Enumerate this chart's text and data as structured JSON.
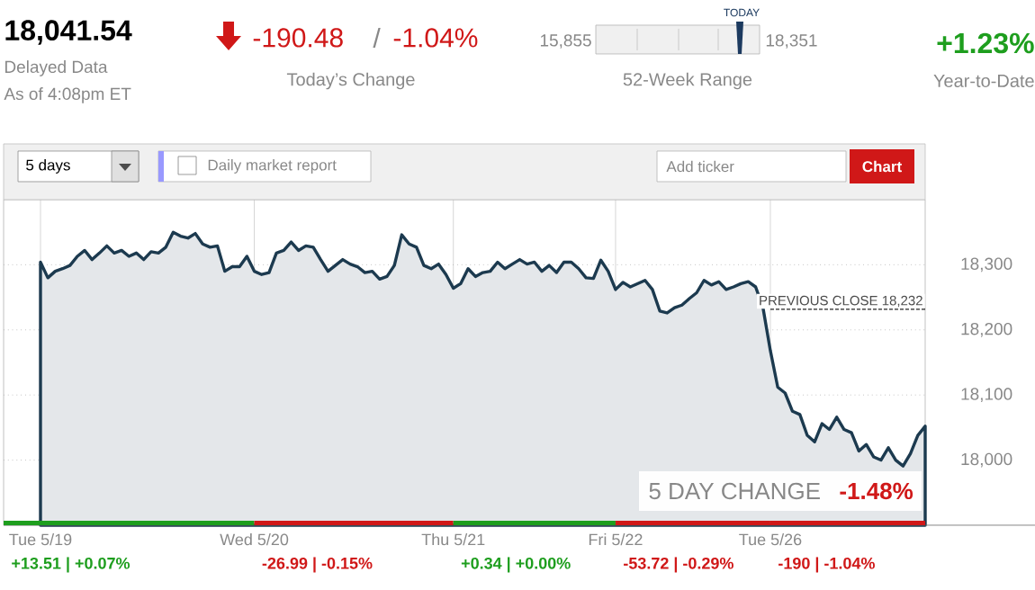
{
  "chart_data": {
    "type": "area",
    "title": "18,041.54",
    "subtitle": "Delayed Data",
    "annotations": [
      "As of 4:08pm ET",
      "-190.48",
      "/",
      "-1.04%",
      "Today’s Change",
      "TODAY",
      "15,855",
      "18,351",
      "52-Week Range",
      "+1.23%",
      "Year-to-Date",
      "5 days",
      "Daily market report",
      "Add ticker",
      "Chart",
      "5 DAY CHANGE",
      "-1.48%",
      "+13.51 | +0.07%",
      "-26.99 | -0.15%",
      "+0.34 | +0.00%",
      "-53.72 | -0.29%",
      "-190 | -1.04%"
    ],
    "categories": [
      "Tue 5/19",
      null,
      null,
      null,
      null,
      null,
      null,
      null,
      null,
      null,
      null,
      null,
      null,
      null,
      null,
      null,
      null,
      null,
      null,
      null,
      null,
      null,
      null,
      null,
      null,
      null,
      null,
      null,
      null,
      "Wed 5/20",
      null,
      null,
      null,
      null,
      null,
      null,
      null,
      null,
      null,
      null,
      null,
      null,
      null,
      null,
      null,
      null,
      null,
      null,
      null,
      null,
      null,
      null,
      null,
      null,
      null,
      null,
      "Thu 5/21",
      null,
      null,
      null,
      null,
      null,
      null,
      null,
      null,
      null,
      null,
      null,
      null,
      null,
      null,
      null,
      null,
      null,
      null,
      null,
      null,
      null,
      "Fri 5/22",
      null,
      null,
      null,
      null,
      null,
      null,
      null,
      null,
      null,
      null,
      null,
      null,
      null,
      null,
      null,
      null,
      null,
      null,
      null,
      null,
      "Tue 5/26",
      null,
      null,
      null,
      null,
      null,
      null,
      null,
      null,
      null,
      null,
      null,
      null,
      null,
      null,
      null,
      null,
      null,
      null,
      null,
      null,
      null
    ],
    "series": [
      {
        "color": "#1c3a4f",
        "values": [
          18304,
          18280,
          18290,
          18294,
          18299,
          18313,
          18322,
          18308,
          18318,
          18329,
          18318,
          18322,
          18313,
          18318,
          18308,
          18320,
          18318,
          18327,
          18350,
          18344,
          18341,
          18348,
          18332,
          18327,
          18329,
          18290,
          18297,
          18297,
          18313,
          18290,
          18285,
          18288,
          18318,
          18322,
          18335,
          18322,
          18329,
          18327,
          18308,
          18290,
          18299,
          18308,
          18301,
          18297,
          18288,
          18290,
          18278,
          18282,
          18299,
          18346,
          18332,
          18327,
          18299,
          18294,
          18301,
          18285,
          18264,
          18271,
          18294,
          18282,
          18288,
          18290,
          18304,
          18294,
          18301,
          18308,
          18301,
          18304,
          18290,
          18299,
          18288,
          18304,
          18304,
          18294,
          18280,
          18279,
          18307,
          18290,
          18262,
          18273,
          18266,
          18271,
          18276,
          18262,
          18229,
          18226,
          18234,
          18238,
          18248,
          18257,
          18276,
          18269,
          18274,
          18262,
          18266,
          18271,
          18274,
          18266,
          18234,
          18168,
          18112,
          18103,
          18075,
          18070,
          18038,
          18028,
          18056,
          18047,
          18066,
          18047,
          18042,
          18014,
          18024,
          18005,
          18000,
          18019,
          18000,
          17991,
          18010,
          18038,
          18052
        ]
      }
    ],
    "ylim": [
      17900,
      18400
    ],
    "yticks": [
      {
        "value": 18000,
        "label": "18,000"
      },
      {
        "value": 18100,
        "label": "18,100"
      },
      {
        "value": 18200,
        "label": "18,200"
      },
      {
        "value": 18300,
        "label": "18,300"
      }
    ],
    "grid": true,
    "ref_lines": [
      {
        "axis": "y",
        "value": 18232,
        "label": "PREVIOUS CLOSE 18,232",
        "line_style": "dashed",
        "color": "#222222"
      }
    ]
  }
}
